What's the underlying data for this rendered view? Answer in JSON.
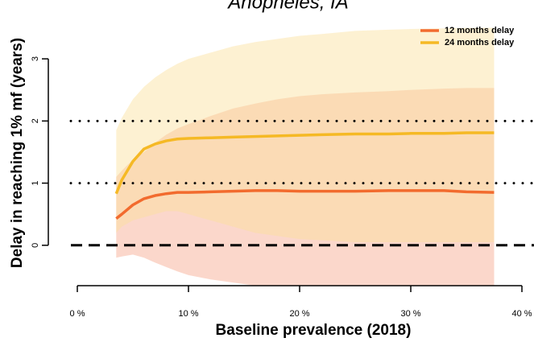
{
  "chart_data": {
    "type": "line",
    "title": "Anopheles, IA",
    "xlabel": "Baseline prevalence (2018)",
    "ylabel": "Delay in reaching 1% mf (years)",
    "x": [
      3.5,
      4,
      5,
      6,
      7,
      8,
      9,
      10,
      12,
      14,
      16,
      18,
      20,
      22,
      25,
      28,
      30,
      33,
      35,
      37.5
    ],
    "series": [
      {
        "name": "12 months delay",
        "color": "#f26b2e",
        "band_color": "#f7a68c",
        "values": [
          0.43,
          0.5,
          0.65,
          0.75,
          0.8,
          0.83,
          0.85,
          0.85,
          0.86,
          0.87,
          0.88,
          0.88,
          0.87,
          0.87,
          0.87,
          0.88,
          0.88,
          0.88,
          0.86,
          0.85
        ],
        "upper": [
          1.1,
          1.2,
          1.38,
          1.5,
          1.65,
          1.78,
          1.88,
          1.95,
          2.08,
          2.2,
          2.28,
          2.35,
          2.4,
          2.43,
          2.46,
          2.48,
          2.5,
          2.52,
          2.53,
          2.53
        ],
        "lower": [
          -0.2,
          -0.18,
          -0.15,
          -0.2,
          -0.28,
          -0.35,
          -0.42,
          -0.48,
          -0.55,
          -0.6,
          -0.65,
          -0.65,
          -0.65,
          -0.65,
          -0.65,
          -0.65,
          -0.65,
          -0.65,
          -0.65,
          -0.65
        ]
      },
      {
        "name": "24 months delay",
        "color": "#f5b925",
        "band_color": "#fbdf9c",
        "values": [
          0.83,
          1.05,
          1.35,
          1.55,
          1.63,
          1.68,
          1.71,
          1.72,
          1.73,
          1.74,
          1.75,
          1.76,
          1.77,
          1.78,
          1.79,
          1.79,
          1.8,
          1.8,
          1.81,
          1.81
        ],
        "upper": [
          1.85,
          2.05,
          2.35,
          2.55,
          2.7,
          2.82,
          2.92,
          3.0,
          3.1,
          3.2,
          3.27,
          3.32,
          3.37,
          3.4,
          3.45,
          3.47,
          3.48,
          3.49,
          3.5,
          3.5
        ],
        "lower": [
          0.2,
          0.3,
          0.4,
          0.45,
          0.5,
          0.55,
          0.55,
          0.5,
          0.4,
          0.3,
          0.2,
          0.15,
          0.1,
          0.08,
          0.05,
          0.05,
          0.05,
          0.05,
          0.05,
          0.05
        ]
      }
    ],
    "reference_lines": [
      {
        "value": 0,
        "style": "dashed"
      },
      {
        "value": 1,
        "style": "dotted"
      },
      {
        "value": 2,
        "style": "dotted"
      }
    ],
    "xlim": [
      0,
      40
    ],
    "xticks": [
      {
        "value": 0,
        "label": "0 %"
      },
      {
        "value": 10,
        "label": "10 %"
      },
      {
        "value": 20,
        "label": "20 %"
      },
      {
        "value": 30,
        "label": "30 %"
      },
      {
        "value": 40,
        "label": "40 %"
      }
    ],
    "ylim": [
      -0.65,
      3.5
    ],
    "yticks": [
      0,
      1,
      2,
      3
    ],
    "legend": "top-right"
  }
}
